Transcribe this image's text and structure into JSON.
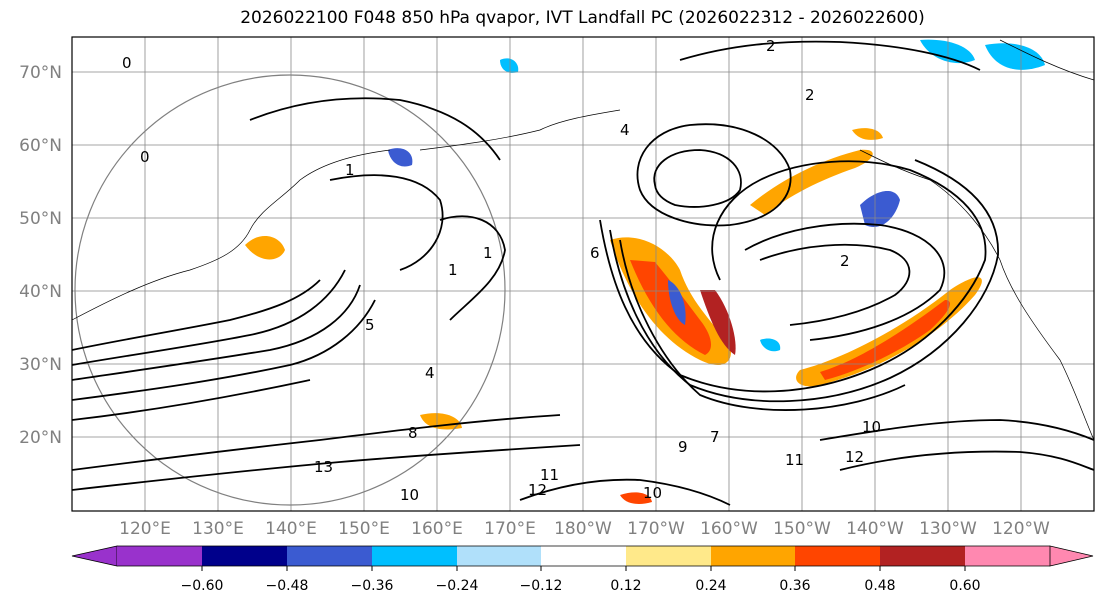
{
  "title": "2026022100 F048 850 hPa qvapor, IVT Landfall PC (2026022312 - 2026022600)",
  "lat_labels": [
    "70°N",
    "60°N",
    "50°N",
    "40°N",
    "30°N",
    "20°N"
  ],
  "lon_labels": [
    "120°E",
    "130°E",
    "140°E",
    "150°E",
    "160°E",
    "170°E",
    "180°W",
    "170°W",
    "160°W",
    "150°W",
    "140°W",
    "130°W",
    "120°W"
  ],
  "contour_labels": [
    "0",
    "0",
    "1",
    "1",
    "1",
    "2",
    "2",
    "2",
    "4",
    "4",
    "5",
    "6",
    "7",
    "8",
    "9",
    "10",
    "10",
    "10",
    "11",
    "11",
    "12",
    "12",
    "13"
  ],
  "colorbar": {
    "ticks": [
      "−0.60",
      "−0.48",
      "−0.36",
      "−0.24",
      "−0.12",
      "0.12",
      "0.24",
      "0.36",
      "0.48",
      "0.60"
    ],
    "colors": [
      "#9932cc",
      "#00008b",
      "#3b5bd1",
      "#00bfff",
      "#b0e0fa",
      "#ffffff",
      "#ffe98a",
      "#ffa500",
      "#ff4500",
      "#b22222",
      "#ff88b0"
    ]
  }
}
